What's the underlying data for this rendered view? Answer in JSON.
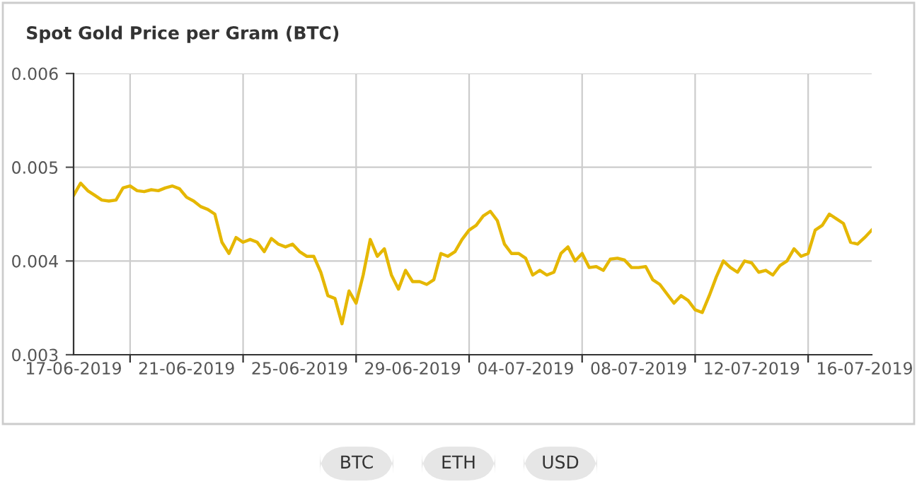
{
  "chart_data": {
    "type": "line",
    "title": "Spot Gold Price per Gram (BTC)",
    "categories": [
      "17-06-2019",
      null,
      null,
      null,
      null,
      null,
      null,
      null,
      null,
      null,
      null,
      null,
      null,
      null,
      null,
      null,
      "21-06-2019",
      null,
      null,
      null,
      null,
      null,
      null,
      null,
      null,
      null,
      null,
      null,
      null,
      null,
      null,
      null,
      "25-06-2019",
      null,
      null,
      null,
      null,
      null,
      null,
      null,
      null,
      null,
      null,
      null,
      null,
      null,
      null,
      null,
      "29-06-2019",
      null,
      null,
      null,
      null,
      null,
      null,
      null,
      null,
      null,
      null,
      null,
      null,
      null,
      null,
      null,
      "04-07-2019",
      null,
      null,
      null,
      null,
      null,
      null,
      null,
      null,
      null,
      null,
      null,
      null,
      null,
      null,
      null,
      "08-07-2019",
      null,
      null,
      null,
      null,
      null,
      null,
      null,
      null,
      null,
      null,
      null,
      null,
      null,
      null,
      null,
      "12-07-2019",
      null,
      null,
      null,
      null,
      null,
      null,
      null,
      null,
      null,
      null,
      null,
      null,
      null,
      null,
      null,
      "16-07-2019",
      null
    ],
    "series": [
      {
        "color": "#e5b700",
        "values": [
          0.0047,
          0.00483,
          0.00475,
          0.0047,
          0.00465,
          0.00464,
          0.00465,
          0.00478,
          0.0048,
          0.00475,
          0.00474,
          0.00476,
          0.00475,
          0.00478,
          0.0048,
          0.00477,
          0.00468,
          0.00464,
          0.00458,
          0.00455,
          0.0045,
          0.0042,
          0.00408,
          0.00425,
          0.0042,
          0.00423,
          0.0042,
          0.0041,
          0.00424,
          0.00418,
          0.00415,
          0.00418,
          0.0041,
          0.00405,
          0.00405,
          0.00388,
          0.00363,
          0.0036,
          0.00333,
          0.00368,
          0.00355,
          0.00385,
          0.00423,
          0.00405,
          0.00413,
          0.00385,
          0.0037,
          0.0039,
          0.00378,
          0.00378,
          0.00375,
          0.0038,
          0.00408,
          0.00405,
          0.0041,
          0.00423,
          0.00433,
          0.00438,
          0.00448,
          0.00453,
          0.00443,
          0.00418,
          0.00408,
          0.00408,
          0.00403,
          0.00385,
          0.0039,
          0.00385,
          0.00388,
          0.00408,
          0.00415,
          0.004,
          0.00408,
          0.00393,
          0.00394,
          0.0039,
          0.00402,
          0.00403,
          0.00401,
          0.00393,
          0.00393,
          0.00394,
          0.0038,
          0.00375,
          0.00365,
          0.00355,
          0.00363,
          0.00358,
          0.00348,
          0.00345,
          0.00363,
          0.00383,
          0.004,
          0.00393,
          0.00388,
          0.004,
          0.00398,
          0.00388,
          0.0039,
          0.00385,
          0.00395,
          0.004,
          0.00413,
          0.00405,
          0.00408,
          0.00433,
          0.00438,
          0.0045,
          0.00445,
          0.0044,
          0.0042,
          0.00418,
          0.00425,
          0.00433
        ]
      }
    ],
    "ylim": [
      0.003,
      0.006
    ],
    "yticks": [
      0.003,
      0.004,
      0.005,
      0.006
    ],
    "grid": true,
    "marker": "none",
    "line_style": "solid",
    "annotations": [
      "BTC",
      "ETH",
      "USD"
    ]
  }
}
